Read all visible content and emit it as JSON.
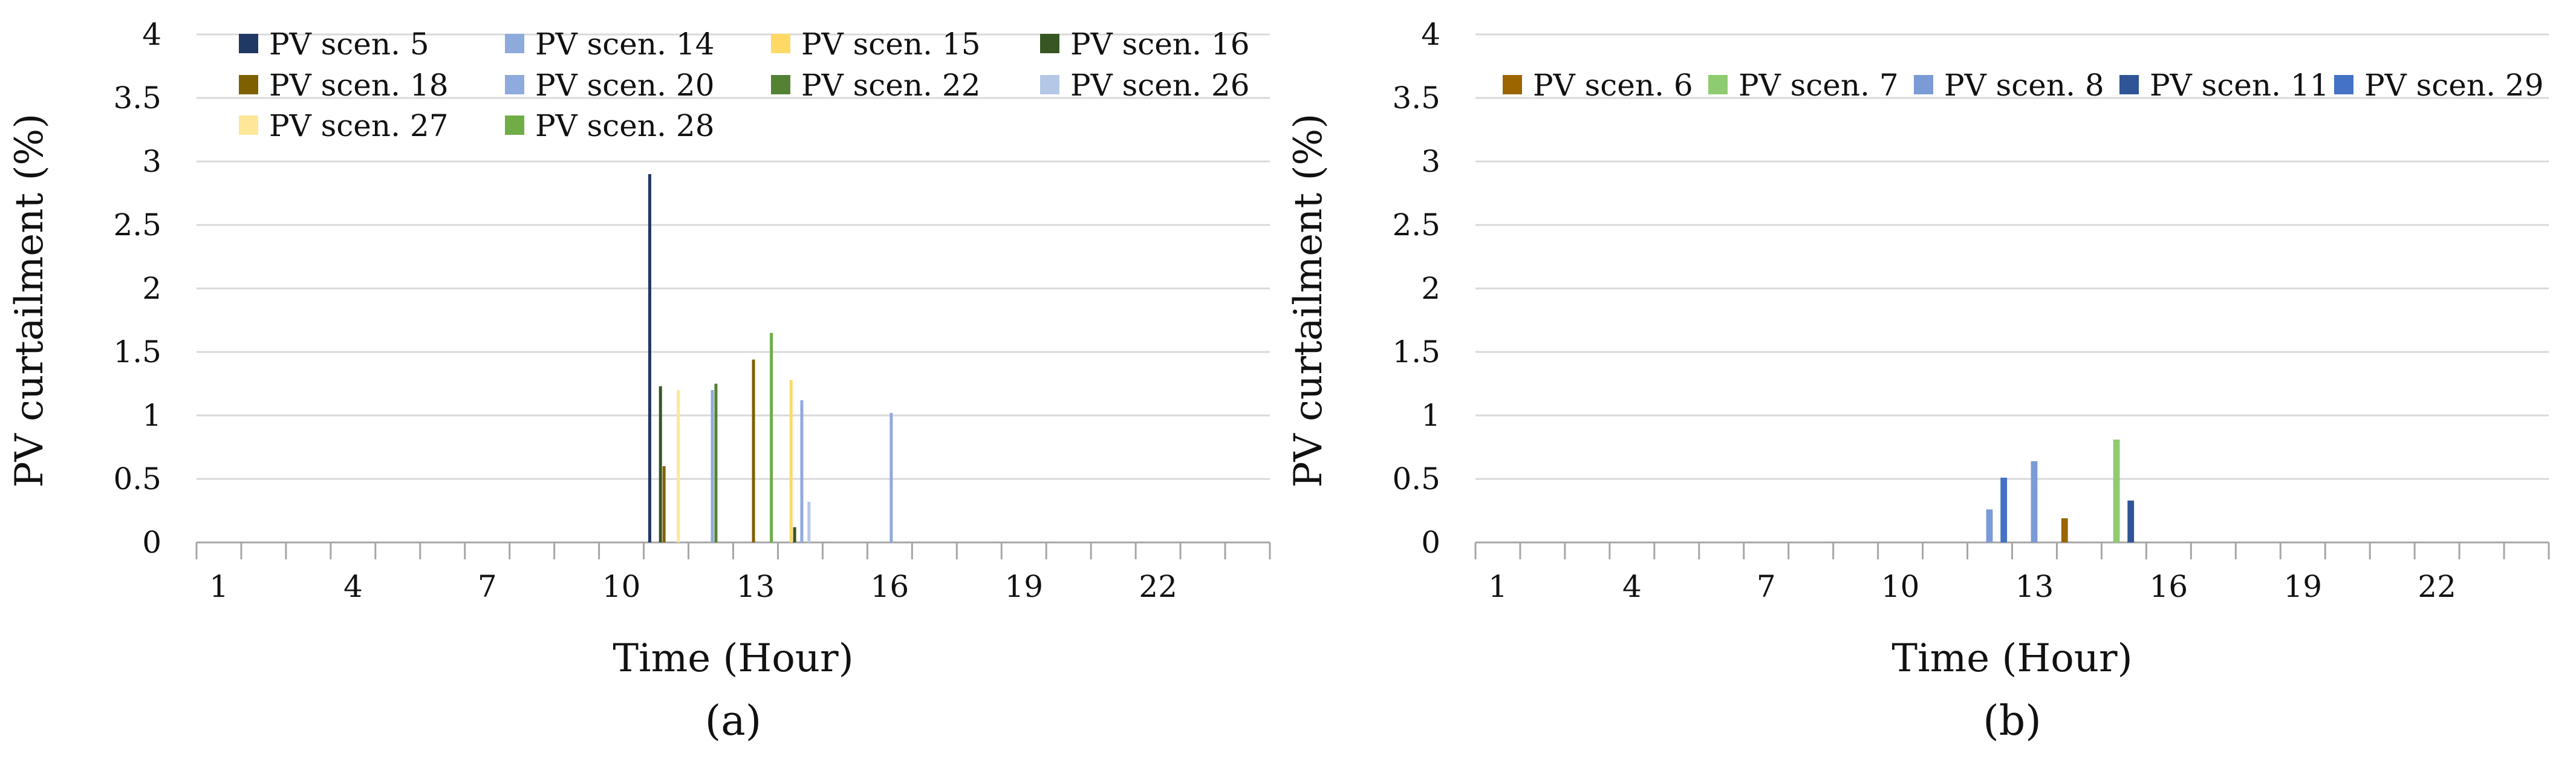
{
  "chart_data": [
    {
      "type": "bar",
      "panel_label": "(a)",
      "xlabel": "Time (Hour)",
      "ylabel": "PV curtailment (%)",
      "ylim": [
        0,
        4
      ],
      "yticks": [
        "0",
        "0.5",
        "1",
        "1.5",
        "2",
        "2.5",
        "3",
        "3.5",
        "4"
      ],
      "xlim": [
        1,
        24
      ],
      "xticks": [
        "1",
        "4",
        "7",
        "10",
        "13",
        "16",
        "19",
        "22"
      ],
      "grid": "horizontal",
      "legend_position": "top",
      "series": [
        {
          "name": "PV scen. 5",
          "color": "#203864",
          "points": [
            [
              11,
              2.9
            ]
          ]
        },
        {
          "name": "PV scen. 14",
          "color": "#8EAADB",
          "points": [
            [
              11,
              0.0
            ]
          ]
        },
        {
          "name": "PV scen. 15",
          "color": "#FFD966",
          "points": [
            [
              14,
              1.28
            ]
          ]
        },
        {
          "name": "PV scen. 16",
          "color": "#375623",
          "points": [
            [
              11,
              1.23
            ],
            [
              14,
              0.12
            ]
          ]
        },
        {
          "name": "PV scen. 18",
          "color": "#7F6000",
          "points": [
            [
              11,
              0.6
            ],
            [
              13,
              1.44
            ]
          ]
        },
        {
          "name": "PV scen. 20",
          "color": "#8FAADC",
          "points": [
            [
              12,
              1.2
            ],
            [
              14,
              1.12
            ],
            [
              16,
              1.02
            ]
          ]
        },
        {
          "name": "PV scen. 22",
          "color": "#548235",
          "points": [
            [
              12,
              1.25
            ]
          ]
        },
        {
          "name": "PV scen. 26",
          "color": "#B4C7E7",
          "points": [
            [
              14,
              0.32
            ]
          ]
        },
        {
          "name": "PV scen. 27",
          "color": "#FFE699",
          "points": [
            [
              11,
              1.2
            ]
          ]
        },
        {
          "name": "PV scen. 28",
          "color": "#70AD47",
          "points": [
            [
              13,
              1.65
            ]
          ]
        }
      ]
    },
    {
      "type": "bar",
      "panel_label": "(b)",
      "xlabel": "Time (Hour)",
      "ylabel": "PV curtailment (%)",
      "ylim": [
        0,
        4
      ],
      "yticks": [
        "0",
        "0.5",
        "1",
        "1.5",
        "2",
        "2.5",
        "3",
        "3.5",
        "4"
      ],
      "xlim": [
        1,
        24
      ],
      "xticks": [
        "1",
        "4",
        "7",
        "10",
        "13",
        "16",
        "19",
        "22"
      ],
      "grid": "horizontal",
      "legend_position": "top",
      "series": [
        {
          "name": "PV scen. 6",
          "color": "#9C6500",
          "points": [
            [
              14,
              0.19
            ]
          ]
        },
        {
          "name": "PV scen. 7",
          "color": "#8FCB70",
          "points": [
            [
              15,
              0.81
            ]
          ]
        },
        {
          "name": "PV scen. 8",
          "color": "#7B9BD6",
          "points": [
            [
              12,
              0.26
            ],
            [
              13,
              0.64
            ]
          ]
        },
        {
          "name": "PV scen. 11",
          "color": "#2F5597",
          "points": [
            [
              15,
              0.33
            ]
          ]
        },
        {
          "name": "PV scen. 29",
          "color": "#4472C4",
          "points": [
            [
              12,
              0.51
            ]
          ]
        }
      ]
    }
  ]
}
